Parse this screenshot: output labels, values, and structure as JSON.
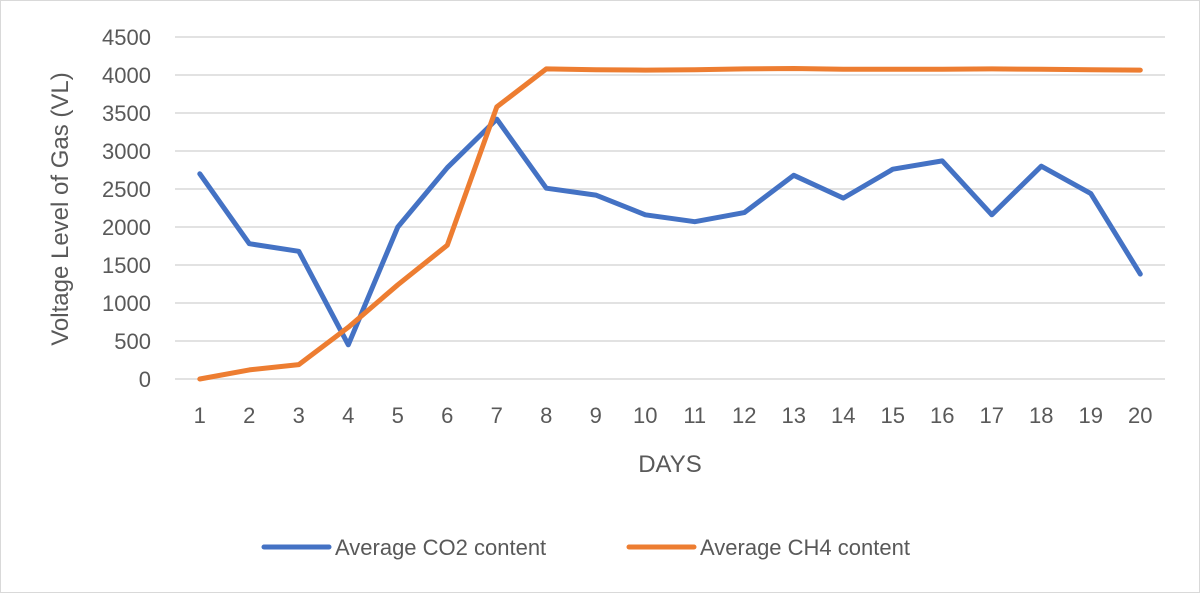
{
  "chart_data": {
    "type": "line",
    "title": "",
    "xlabel": "DAYS",
    "ylabel": "Voltage Level of Gas (VL)",
    "x": [
      1,
      2,
      3,
      4,
      5,
      6,
      7,
      8,
      9,
      10,
      11,
      12,
      13,
      14,
      15,
      16,
      17,
      18,
      19,
      20
    ],
    "ylim": [
      0,
      4500
    ],
    "yticks": [
      0,
      500,
      1000,
      1500,
      2000,
      2500,
      3000,
      3500,
      4000,
      4500
    ],
    "grid": "horizontal",
    "legend_position": "bottom",
    "series": [
      {
        "name": "Average CO2 content",
        "color": "#4472c4",
        "values": [
          2700,
          1780,
          1680,
          450,
          2000,
          2780,
          3420,
          2510,
          2420,
          2160,
          2070,
          2190,
          2680,
          2380,
          2760,
          2870,
          2160,
          2800,
          2440,
          1380
        ]
      },
      {
        "name": "Average CH4 content",
        "color": "#ed7d31",
        "values": [
          0,
          120,
          190,
          680,
          1240,
          1760,
          3580,
          4080,
          4070,
          4065,
          4070,
          4080,
          4085,
          4075,
          4075,
          4075,
          4080,
          4075,
          4070,
          4065
        ]
      }
    ]
  }
}
